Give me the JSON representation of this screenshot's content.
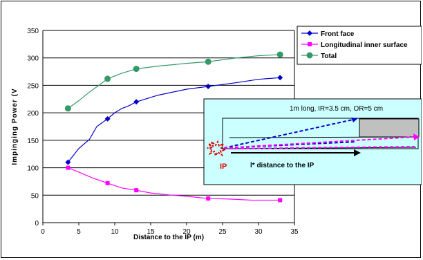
{
  "chart_data": {
    "type": "line",
    "title": "",
    "xlabel": "Distance to the IP (m)",
    "ylabel": "Impinging Power   (V",
    "xlim": [
      0,
      35
    ],
    "ylim": [
      0,
      350
    ],
    "x_ticks": [
      "0",
      "5",
      "10",
      "15",
      "20",
      "25",
      "30",
      "35"
    ],
    "y_ticks": [
      "0",
      "50",
      "100",
      "150",
      "200",
      "250",
      "300",
      "350"
    ],
    "grid": "horizontal",
    "legend_position": "top-right",
    "series": [
      {
        "name": "Front face",
        "color": "#0000cc",
        "marker": "diamond",
        "markers": [
          [
            3.5,
            110
          ],
          [
            9,
            189
          ],
          [
            13,
            220
          ],
          [
            23,
            248
          ],
          [
            33,
            264
          ]
        ],
        "curve": [
          [
            3.5,
            110
          ],
          [
            5,
            135
          ],
          [
            6.5,
            152
          ],
          [
            7.5,
            175
          ],
          [
            9,
            189
          ],
          [
            10,
            200
          ],
          [
            11,
            208
          ],
          [
            12,
            213
          ],
          [
            13,
            220
          ],
          [
            16,
            232
          ],
          [
            20,
            243
          ],
          [
            23,
            248
          ],
          [
            27,
            255
          ],
          [
            30,
            261
          ],
          [
            33,
            264
          ]
        ]
      },
      {
        "name": "Longitudinal inner surface",
        "color": "#ff00ff",
        "marker": "square",
        "markers": [
          [
            3.5,
            100
          ],
          [
            9,
            72
          ],
          [
            13,
            59
          ],
          [
            23,
            44
          ],
          [
            33,
            41
          ]
        ],
        "curve": [
          [
            3.5,
            100
          ],
          [
            5,
            92
          ],
          [
            7,
            81
          ],
          [
            9,
            72
          ],
          [
            11,
            63
          ],
          [
            13,
            59
          ],
          [
            15,
            54
          ],
          [
            18,
            50
          ],
          [
            20,
            48
          ],
          [
            23,
            44
          ],
          [
            26,
            43
          ],
          [
            29,
            41
          ],
          [
            33,
            41
          ]
        ]
      },
      {
        "name": "Total",
        "color": "#339966",
        "marker": "circle",
        "markers": [
          [
            3.5,
            208
          ],
          [
            9,
            262
          ],
          [
            13,
            280
          ],
          [
            23,
            293
          ],
          [
            33,
            306
          ]
        ],
        "curve": [
          [
            3.5,
            208
          ],
          [
            5,
            222
          ],
          [
            6.5,
            238
          ],
          [
            8,
            252
          ],
          [
            9,
            262
          ],
          [
            11,
            272
          ],
          [
            13,
            280
          ],
          [
            16,
            285
          ],
          [
            20,
            290
          ],
          [
            23,
            293
          ],
          [
            27,
            300
          ],
          [
            30,
            304
          ],
          [
            33,
            306
          ]
        ]
      }
    ]
  },
  "inset": {
    "note": "1m long, IR=3.5 cm, OR=5 cm",
    "ip_label": "IP",
    "distance_label": "l* distance to the IP",
    "background_color": "#ccffff",
    "arrow_colors": [
      "#0000cc",
      "#ff00ff",
      "#e00000"
    ]
  }
}
